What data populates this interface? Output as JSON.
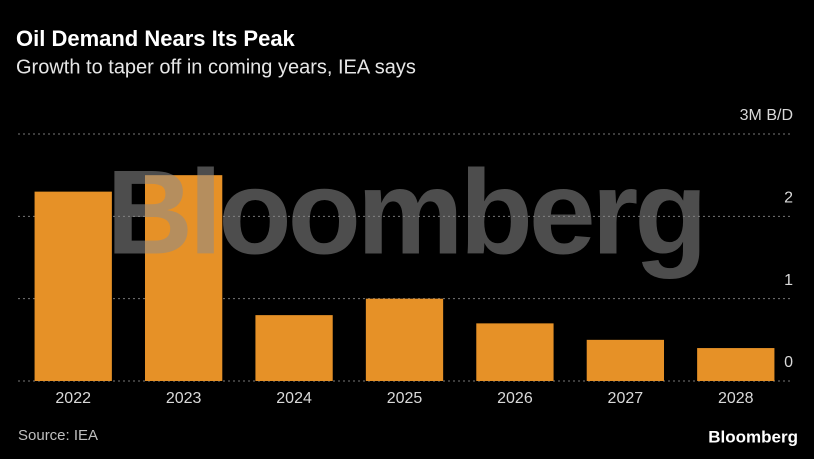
{
  "chart_data": {
    "type": "bar",
    "title": "Oil Demand Nears Its Peak",
    "subtitle": "Growth to taper off in coming years, IEA says",
    "categories": [
      "2022",
      "2023",
      "2024",
      "2025",
      "2026",
      "2027",
      "2028"
    ],
    "values": [
      2.3,
      2.5,
      0.8,
      1.0,
      0.7,
      0.5,
      0.4
    ],
    "color": "#e69127",
    "ylim": [
      0,
      3
    ],
    "yticks": [
      0,
      1,
      2,
      {
        "value": 3,
        "label": "3M B/D"
      }
    ],
    "grid": true,
    "source": "Source: IEA",
    "watermark": "Bloomberg",
    "logo": "Bloomberg"
  }
}
